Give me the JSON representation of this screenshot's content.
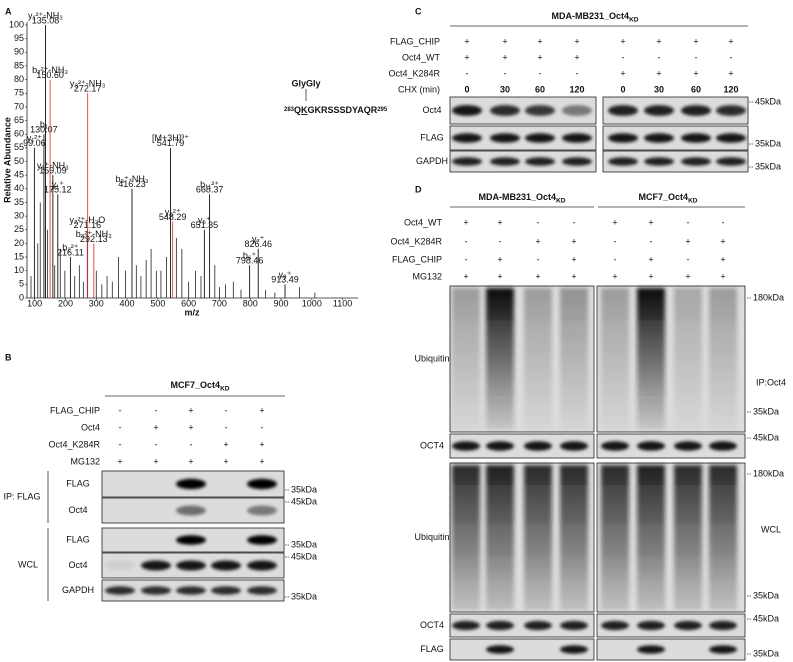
{
  "panel_a": {
    "label": "A",
    "y_label": "Relative Abundance",
    "x_label": "m/z",
    "modification": "GlyGly",
    "peptide": {
      "start": "283",
      "prefix": "Q",
      "site": "K",
      "rest": "GKRSSSDYAQR",
      "end": "295"
    },
    "xlim": [
      75,
      1150
    ],
    "ylim": [
      0,
      100
    ],
    "xticks": [
      100,
      200,
      300,
      400,
      500,
      600,
      700,
      800,
      900,
      1000,
      1100
    ],
    "yticks": [
      0,
      5,
      10,
      15,
      20,
      25,
      30,
      35,
      40,
      45,
      50,
      55,
      60,
      65,
      70,
      75,
      80,
      85,
      90,
      95,
      100
    ],
    "peaks": [
      {
        "mz": 99,
        "intensity": 55,
        "ion": "y₁²⁺",
        "mass": "99.06",
        "color": "#111111"
      },
      {
        "mz": 130,
        "intensity": 60,
        "ion": "b₁",
        "mass": "130.07",
        "color": "#111111"
      },
      {
        "mz": 135,
        "intensity": 100,
        "ion": "y₁²⁺-NH₃",
        "mass": "135.08",
        "color": "#111111"
      },
      {
        "mz": 150,
        "intensity": 80,
        "ion": "b₂²⁺-NH₃",
        "mass": "150.60",
        "color": "#d9413b"
      },
      {
        "mz": 159,
        "intensity": 45,
        "ion": "y₁⁺-NH₃",
        "mass": "159.09",
        "color": "#111111"
      },
      {
        "mz": 175,
        "intensity": 38,
        "ion": "y₁⁺",
        "mass": "175.12",
        "color": "#111111"
      },
      {
        "mz": 216,
        "intensity": 15,
        "ion": "b₂²⁺",
        "mass": "216.11",
        "color": "#111111"
      },
      {
        "mz": 271,
        "intensity": 25,
        "ion": "y₂²⁺-H₂O",
        "mass": "271.16",
        "color": "#111111"
      },
      {
        "mz": 272,
        "intensity": 75,
        "ion": "y₃²⁺-NH₃",
        "mass": "272.17",
        "color": "#d9413b"
      },
      {
        "mz": 292,
        "intensity": 20,
        "ion": "b₃²⁺-NH₃",
        "mass": "292.13",
        "color": "#d9413b"
      },
      {
        "mz": 416,
        "intensity": 40,
        "ion": "b₃⁺-NH₃",
        "mass": "416.23",
        "color": "#111111"
      },
      {
        "mz": 541,
        "intensity": 55,
        "ion": "[M+3H]³⁺",
        "mass": "541.79",
        "color": "#111111"
      },
      {
        "mz": 548,
        "intensity": 28,
        "ion": "y₆²⁺",
        "mass": "548.29",
        "color": "#d9413b"
      },
      {
        "mz": 651,
        "intensity": 25,
        "ion": "y₅⁺",
        "mass": "651.35",
        "color": "#111111"
      },
      {
        "mz": 668,
        "intensity": 38,
        "ion": "b₁₁²⁺",
        "mass": "668.37",
        "color": "#111111"
      },
      {
        "mz": 798,
        "intensity": 12,
        "ion": "b₆⁺",
        "mass": "798.46",
        "color": "#111111"
      },
      {
        "mz": 826,
        "intensity": 18,
        "ion": "y₇⁺",
        "mass": "826.46",
        "color": "#111111"
      },
      {
        "mz": 913,
        "intensity": 5,
        "ion": "y₈⁺",
        "mass": "913.49",
        "color": "#111111"
      }
    ],
    "other_peaks": {
      "mz": [
        88,
        110,
        118,
        142,
        165,
        183,
        198,
        230,
        245,
        258,
        300,
        318,
        335,
        352,
        372,
        395,
        430,
        445,
        462,
        478,
        495,
        510,
        528,
        560,
        578,
        600,
        622,
        640,
        685,
        700,
        720,
        745,
        770,
        850,
        880,
        960,
        1010
      ],
      "intensity": [
        8,
        20,
        35,
        25,
        12,
        18,
        10,
        8,
        12,
        6,
        10,
        5,
        8,
        6,
        15,
        10,
        12,
        8,
        14,
        18,
        10,
        10,
        15,
        22,
        18,
        6,
        10,
        8,
        12,
        4,
        5,
        6,
        3,
        3,
        2,
        4,
        2
      ]
    }
  },
  "panel_b": {
    "label": "B",
    "title": {
      "text": "MCF7_Oct4",
      "sub": "KD"
    },
    "conditions": [
      {
        "name": "FLAG_CHIP",
        "signs": [
          "-",
          "-",
          "+",
          "-",
          "+"
        ]
      },
      {
        "name": "Oct4",
        "signs": [
          "-",
          "+",
          "+",
          "-",
          "-"
        ]
      },
      {
        "name": "Oct4_K284R",
        "signs": [
          "-",
          "-",
          "-",
          "+",
          "+"
        ]
      },
      {
        "name": "MG132",
        "signs": [
          "+",
          "+",
          "+",
          "+",
          "+"
        ]
      }
    ],
    "groups": [
      {
        "name": "IP: FLAG",
        "blots": [
          {
            "name": "FLAG",
            "marker": "35kDa"
          },
          {
            "name": "Oct4",
            "marker": "45kDa"
          }
        ]
      },
      {
        "name": "WCL",
        "blots": [
          {
            "name": "FLAG",
            "marker": "35kDa"
          },
          {
            "name": "Oct4",
            "marker": "45kDa"
          },
          {
            "name": "GAPDH",
            "marker": "35kDa"
          }
        ]
      }
    ]
  },
  "panel_c": {
    "label": "C",
    "title": {
      "text": "MDA-MB231_Oct4",
      "sub": "KD"
    },
    "conditions": [
      {
        "name": "FLAG_CHIP",
        "signs": [
          "+",
          "+",
          "+",
          "+",
          "+",
          "+",
          "+",
          "+"
        ]
      },
      {
        "name": "Oct4_WT",
        "signs": [
          "+",
          "+",
          "+",
          "+",
          "-",
          "-",
          "-",
          "-"
        ]
      },
      {
        "name": "Oct4_K284R",
        "signs": [
          "-",
          "-",
          "-",
          "-",
          "+",
          "+",
          "+",
          "+"
        ]
      },
      {
        "name": "CHX (min)",
        "signs": [
          "0",
          "30",
          "60",
          "120",
          "0",
          "30",
          "60",
          "120"
        ]
      }
    ],
    "blots": [
      {
        "name": "Oct4",
        "marker": "45kDa"
      },
      {
        "name": "FLAG",
        "marker": "35kDa"
      },
      {
        "name": "GAPDH",
        "marker": "35kDa"
      }
    ]
  },
  "panel_d": {
    "label": "D",
    "titles": [
      {
        "text": "MDA-MB231_Oct4",
        "sub": "KD"
      },
      {
        "text": "MCF7_Oct4",
        "sub": "KD"
      }
    ],
    "conditions": [
      {
        "name": "Oct4_WT",
        "signs": [
          "+",
          "+",
          "-",
          "-",
          "+",
          "+",
          "-",
          "-"
        ]
      },
      {
        "name": "Oct4_K284R",
        "signs": [
          "-",
          "-",
          "+",
          "+",
          "-",
          "-",
          "+",
          "+"
        ]
      },
      {
        "name": "FLAG_CHIP",
        "signs": [
          "-",
          "+",
          "-",
          "+",
          "-",
          "+",
          "-",
          "+"
        ]
      },
      {
        "name": "MG132",
        "signs": [
          "+",
          "+",
          "+",
          "+",
          "+",
          "+",
          "+",
          "+"
        ]
      }
    ],
    "blots": [
      {
        "name": "Ubiquitin",
        "markers": [
          "180kDa",
          "35kDa"
        ],
        "side_label": "IP:Oct4"
      },
      {
        "name": "OCT4",
        "markers": [
          "45kDa"
        ]
      },
      {
        "name": "Ubiquitin",
        "markers": [
          "180kDa",
          "35kDa"
        ],
        "side_label": "WCL"
      },
      {
        "name": "OCT4",
        "markers": [
          "45kDa"
        ]
      },
      {
        "name": "FLAG",
        "markers": [
          "35kDa"
        ]
      }
    ]
  }
}
